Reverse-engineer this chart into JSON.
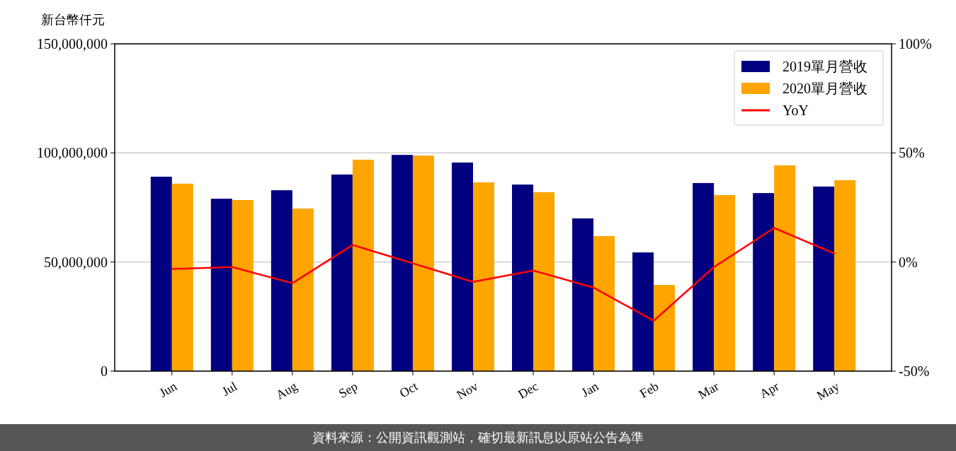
{
  "chart_data": {
    "type": "bar",
    "ylabel": "新台幣仟元",
    "categories": [
      "Jun",
      "Jul",
      "Aug",
      "Sep",
      "Oct",
      "Nov",
      "Dec",
      "Jan",
      "Feb",
      "Mar",
      "Apr",
      "May"
    ],
    "series": [
      {
        "name": "2019單月營收",
        "color": "#000080",
        "values": [
          89100000,
          79000000,
          82900000,
          90100000,
          99100000,
          95600000,
          85500000,
          70000000,
          54400000,
          86200000,
          81600000,
          84600000
        ]
      },
      {
        "name": "2020單月營收",
        "color": "#ffa500",
        "values": [
          85900000,
          78400000,
          74500000,
          96900000,
          98800000,
          86500000,
          82000000,
          61900000,
          39500000,
          80700000,
          94300000,
          87500000
        ]
      },
      {
        "name": "YoY",
        "type": "line",
        "axis": "y2",
        "color": "#ff0000",
        "values": [
          -3.2,
          -2.3,
          -9.7,
          7.8,
          -0.6,
          -9.1,
          -3.9,
          -11.7,
          -26.9,
          -2.3,
          15.6,
          3.9
        ]
      }
    ],
    "ylim": [
      0,
      150000000
    ],
    "yticks": [
      {
        "value": 0,
        "label": "0"
      },
      {
        "value": 50000000,
        "label": "50,000,000"
      },
      {
        "value": 100000000,
        "label": "100,000,000"
      },
      {
        "value": 150000000,
        "label": "150,000,000"
      }
    ],
    "y2lim": [
      -50,
      100
    ],
    "y2ticks": [
      {
        "value": -50,
        "label": "-50%"
      },
      {
        "value": 0,
        "label": "0%"
      },
      {
        "value": 50,
        "label": "50%"
      },
      {
        "value": 100,
        "label": "100%"
      }
    ],
    "grid": "y",
    "legend": "top right",
    "line_style": "solid",
    "annotations": [
      "資料來源：公開資訊觀測站，確切最新訊息以原站公告為準"
    ]
  }
}
